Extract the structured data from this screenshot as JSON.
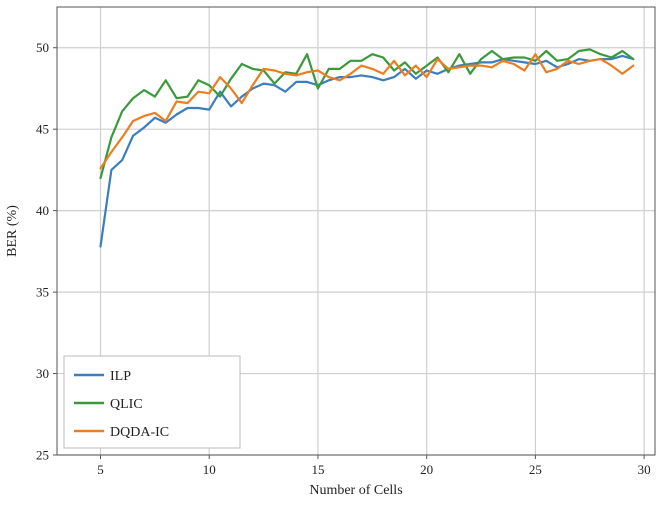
{
  "chart_data": {
    "type": "line",
    "title": "",
    "xlabel": "Number of Cells",
    "ylabel": "BER (%)",
    "xlim": [
      3.0,
      30.5
    ],
    "ylim": [
      25,
      52.5
    ],
    "xticks": [
      5,
      10,
      15,
      20,
      25,
      30
    ],
    "yticks": [
      25,
      30,
      35,
      40,
      45,
      50
    ],
    "grid": true,
    "legend_position": "bottom-left",
    "x": [
      5.0,
      5.5,
      6.0,
      6.5,
      7.0,
      7.5,
      8.0,
      8.5,
      9.0,
      9.5,
      10.0,
      10.5,
      11.0,
      11.5,
      12.0,
      12.5,
      13.0,
      13.5,
      14.0,
      14.5,
      15.0,
      15.5,
      16.0,
      16.5,
      17.0,
      17.5,
      18.0,
      18.5,
      19.0,
      19.5,
      20.0,
      20.5,
      21.0,
      21.5,
      22.0,
      22.5,
      23.0,
      23.5,
      24.0,
      24.5,
      25.0,
      25.5,
      26.0,
      26.5,
      27.0,
      27.5,
      28.0,
      28.5,
      29.0,
      29.5
    ],
    "series": [
      {
        "name": "ILP",
        "color": "#3b7ec0",
        "values": [
          37.8,
          42.5,
          43.1,
          44.6,
          45.1,
          45.7,
          45.4,
          45.9,
          46.3,
          46.3,
          46.2,
          47.3,
          46.4,
          47.0,
          47.5,
          47.8,
          47.7,
          47.3,
          47.9,
          47.9,
          47.7,
          48.0,
          48.2,
          48.2,
          48.3,
          48.2,
          48.0,
          48.2,
          48.7,
          48.1,
          48.6,
          48.4,
          48.7,
          48.9,
          49.0,
          49.1,
          49.1,
          49.3,
          49.2,
          49.1,
          49.0,
          49.2,
          48.8,
          49.0,
          49.3,
          49.2,
          49.3,
          49.3,
          49.5,
          49.3
        ]
      },
      {
        "name": "QLIC",
        "color": "#3a9a3a",
        "values": [
          42.0,
          44.5,
          46.1,
          46.9,
          47.4,
          47.0,
          48.0,
          46.9,
          47.0,
          48.0,
          47.7,
          47.0,
          48.1,
          49.0,
          48.7,
          48.6,
          47.8,
          48.5,
          48.4,
          49.6,
          47.5,
          48.7,
          48.7,
          49.2,
          49.2,
          49.6,
          49.4,
          48.6,
          49.1,
          48.4,
          48.9,
          49.4,
          48.5,
          49.6,
          48.4,
          49.3,
          49.8,
          49.3,
          49.4,
          49.4,
          49.2,
          49.8,
          49.2,
          49.3,
          49.8,
          49.9,
          49.6,
          49.4,
          49.8,
          49.3
        ]
      },
      {
        "name": "DQDA-IC",
        "color": "#ee7d1f",
        "values": [
          42.6,
          43.6,
          44.5,
          45.5,
          45.8,
          46.0,
          45.5,
          46.7,
          46.6,
          47.3,
          47.2,
          48.2,
          47.5,
          46.6,
          47.7,
          48.7,
          48.6,
          48.4,
          48.3,
          48.5,
          48.6,
          48.2,
          48.0,
          48.4,
          48.9,
          48.7,
          48.4,
          49.2,
          48.3,
          48.9,
          48.2,
          49.3,
          48.7,
          48.8,
          48.9,
          48.9,
          48.8,
          49.2,
          49.0,
          48.6,
          49.6,
          48.5,
          48.7,
          49.2,
          49.0,
          49.2,
          49.3,
          48.9,
          48.4,
          48.9
        ]
      }
    ]
  }
}
